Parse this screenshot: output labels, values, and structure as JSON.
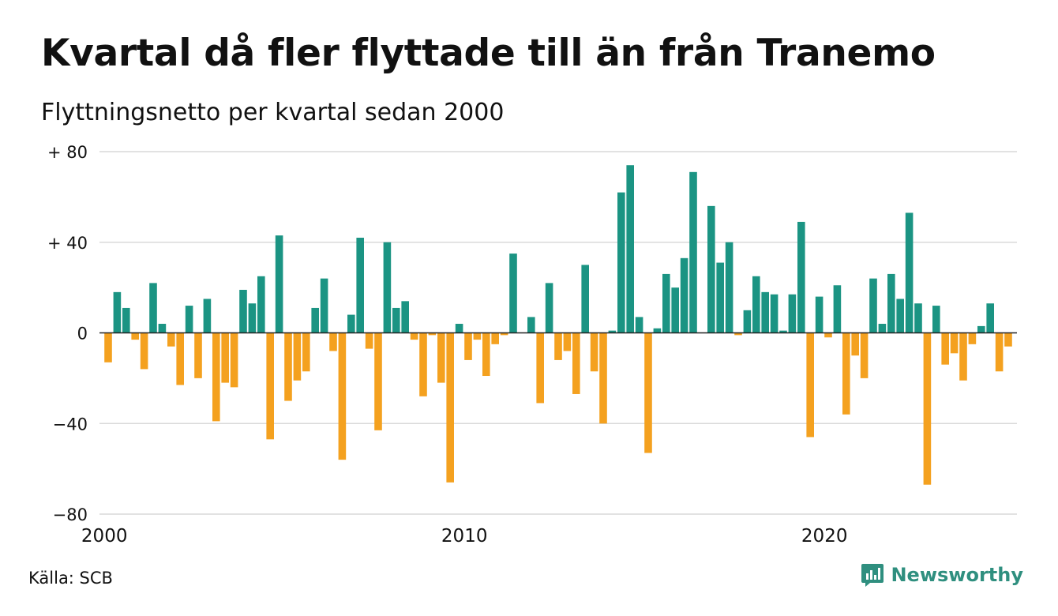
{
  "header": {
    "title": "Kvartal då fler flyttade till än från Tranemo",
    "subtitle": "Flyttningsnetto per kvartal sedan 2000"
  },
  "footer": {
    "source": "Källa: SCB",
    "brand": "Newsworthy"
  },
  "colors": {
    "positive": "#1b9483",
    "negative": "#f4a11f",
    "grid": "#d9d9d9",
    "axis": "#222222",
    "brand": "#2f8f7f"
  },
  "chart_data": {
    "type": "bar",
    "ylim": [
      -80,
      80
    ],
    "yticks": [
      {
        "value": 80,
        "label": "+ 80"
      },
      {
        "value": 40,
        "label": "+ 40"
      },
      {
        "value": 0,
        "label": "0"
      },
      {
        "value": -40,
        "label": "−40"
      },
      {
        "value": -80,
        "label": "−80"
      }
    ],
    "xticks": [
      {
        "year": 2000,
        "label": "2000"
      },
      {
        "year": 2010,
        "label": "2010"
      },
      {
        "year": 2020,
        "label": "2020"
      }
    ],
    "x_start_year": 2000,
    "grid": true,
    "legend": "none",
    "values": [
      -13,
      18,
      11,
      -3,
      -16,
      22,
      4,
      -6,
      -23,
      12,
      -20,
      15,
      -39,
      -22,
      -24,
      19,
      13,
      25,
      -47,
      43,
      -30,
      -21,
      -17,
      11,
      24,
      -8,
      -56,
      8,
      42,
      -7,
      -43,
      40,
      11,
      14,
      -3,
      -28,
      -1,
      -22,
      -66,
      4,
      -12,
      -3,
      -19,
      -5,
      -1,
      35,
      0,
      7,
      -31,
      22,
      -12,
      -8,
      -27,
      30,
      -17,
      -40,
      1,
      62,
      74,
      7,
      -53,
      2,
      26,
      20,
      33,
      71,
      0,
      56,
      31,
      40,
      -1,
      10,
      25,
      18,
      17,
      1,
      17,
      49,
      -46,
      16,
      -2,
      21,
      -36,
      -10,
      -20,
      24,
      4,
      26,
      15,
      53,
      13,
      -67,
      12,
      -14,
      -9,
      -21,
      -5,
      3,
      13,
      -17,
      -6
    ]
  }
}
